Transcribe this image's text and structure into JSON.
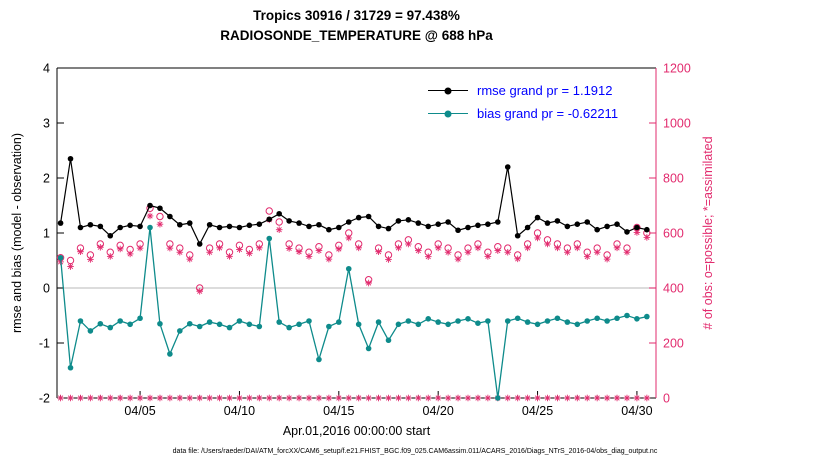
{
  "figure": {
    "footer": "data file: /Users/raeder/DAI/ATM_forcXX/CAM6_setup/f.e21.FHIST_BGC.f09_025.CAM6assim.011/ACARS_2016/Diags_NTrS_2016-04/obs_diag_output.nc"
  },
  "chart_data": {
    "type": "line",
    "title": "Tropics 30916 / 31729 = 97.438%",
    "subtitle": "RADIOSONDE_TEMPERATURE @ 688 hPa",
    "xlabel": "Apr.01,2016 00:00:00 start",
    "ylabel_left": "rmse and bias (model - observation)",
    "ylabel_right": "# of obs: o=possible; *=assimilated",
    "x_range": {
      "min": 0.82,
      "max": 30.96
    },
    "x_ticks": [
      {
        "day": 5,
        "label": "04/05"
      },
      {
        "day": 10,
        "label": "04/10"
      },
      {
        "day": 15,
        "label": "04/15"
      },
      {
        "day": 20,
        "label": "04/20"
      },
      {
        "day": 25,
        "label": "04/25"
      },
      {
        "day": 30,
        "label": "04/30"
      }
    ],
    "y_left": {
      "min": -2,
      "max": 4,
      "ticks": [
        -2,
        -1,
        0,
        1,
        2,
        3,
        4
      ]
    },
    "y_right": {
      "min": 0,
      "max": 1200,
      "ticks": [
        0,
        200,
        400,
        600,
        800,
        1000,
        1200
      ]
    },
    "x_days": [
      1,
      1.5,
      2,
      2.5,
      3,
      3.5,
      4,
      4.5,
      5,
      5.5,
      6,
      6.5,
      7,
      7.5,
      8,
      8.5,
      9,
      9.5,
      10,
      10.5,
      11,
      11.5,
      12,
      12.5,
      13,
      13.5,
      14,
      14.5,
      15,
      15.5,
      16,
      16.5,
      17,
      17.5,
      18,
      18.5,
      19,
      19.5,
      20,
      20.5,
      21,
      21.5,
      22,
      22.5,
      23,
      23.5,
      24,
      24.5,
      25,
      25.5,
      26,
      26.5,
      27,
      27.5,
      28,
      28.5,
      29,
      29.5,
      30,
      30.5
    ],
    "series": {
      "rmse": {
        "label": "rmse grand pr = 1.1912",
        "color": "#000000",
        "axis": "left",
        "marker": "filled-circle",
        "values": [
          1.18,
          2.35,
          1.1,
          1.15,
          1.12,
          0.95,
          1.1,
          1.14,
          1.12,
          1.5,
          1.45,
          1.3,
          1.15,
          1.18,
          0.8,
          1.15,
          1.1,
          1.12,
          1.1,
          1.14,
          1.16,
          1.25,
          1.35,
          1.22,
          1.18,
          1.12,
          1.15,
          1.06,
          1.1,
          1.2,
          1.28,
          1.3,
          1.12,
          1.08,
          1.22,
          1.24,
          1.18,
          1.12,
          1.16,
          1.2,
          1.05,
          1.1,
          1.14,
          1.16,
          1.2,
          2.2,
          0.95,
          1.1,
          1.28,
          1.18,
          1.22,
          1.12,
          1.16,
          1.2,
          1.06,
          1.12,
          1.16,
          1.02,
          1.1,
          1.06
        ]
      },
      "bias": {
        "label": "bias grand pr = -0.62211",
        "color": "#0e8b8b",
        "axis": "left",
        "marker": "filled-circle",
        "values": [
          0.55,
          -1.45,
          -0.6,
          -0.78,
          -0.65,
          -0.72,
          -0.6,
          -0.66,
          -0.55,
          1.1,
          -0.65,
          -1.2,
          -0.78,
          -0.65,
          -0.7,
          -0.62,
          -0.66,
          -0.72,
          -0.6,
          -0.66,
          -0.7,
          0.9,
          -0.62,
          -0.72,
          -0.66,
          -0.6,
          -1.3,
          -0.7,
          -0.62,
          0.35,
          -0.66,
          -1.1,
          -0.62,
          -0.95,
          -0.66,
          -0.6,
          -0.66,
          -0.56,
          -0.62,
          -0.66,
          -0.6,
          -0.56,
          -0.64,
          -0.6,
          -2.0,
          -0.6,
          -0.55,
          -0.62,
          -0.66,
          -0.6,
          -0.55,
          -0.62,
          -0.66,
          -0.6,
          -0.55,
          -0.6,
          -0.55,
          -0.5,
          -0.56,
          -0.52
        ]
      },
      "possible_obs": {
        "label": "o=possible",
        "color": "#e22b6e",
        "axis": "right",
        "marker": "o",
        "values": [
          510,
          500,
          545,
          520,
          560,
          530,
          555,
          540,
          560,
          690,
          660,
          560,
          545,
          520,
          400,
          545,
          560,
          530,
          555,
          540,
          560,
          680,
          640,
          560,
          545,
          530,
          550,
          520,
          555,
          600,
          560,
          430,
          545,
          520,
          560,
          575,
          550,
          530,
          560,
          545,
          520,
          545,
          560,
          530,
          550,
          545,
          520,
          560,
          600,
          575,
          560,
          545,
          560,
          530,
          545,
          520,
          560,
          545,
          620,
          600
        ]
      },
      "assimilated_obs": {
        "label": "*=assimilated",
        "color": "#e22b6e",
        "axis": "right",
        "marker": "*",
        "values": [
          495,
          478,
          532,
          504,
          548,
          515,
          542,
          524,
          545,
          662,
          632,
          545,
          530,
          505,
          388,
          530,
          546,
          515,
          540,
          526,
          546,
          648,
          612,
          544,
          532,
          515,
          536,
          505,
          542,
          582,
          546,
          418,
          532,
          504,
          546,
          560,
          536,
          514,
          546,
          530,
          505,
          530,
          546,
          515,
          536,
          530,
          506,
          546,
          582,
          560,
          546,
          530,
          546,
          514,
          530,
          505,
          546,
          530,
          602,
          584
        ]
      },
      "baseline_markers": {
        "label": "bottom-row markers",
        "color": "#e22b6e",
        "axis": "right",
        "marker": "*",
        "value": 0
      }
    },
    "colors": {
      "legend_text": "#0000ff",
      "zero_line": "#c8c8c8",
      "axis": "#000000",
      "right_axis": "#e22b6e"
    }
  }
}
